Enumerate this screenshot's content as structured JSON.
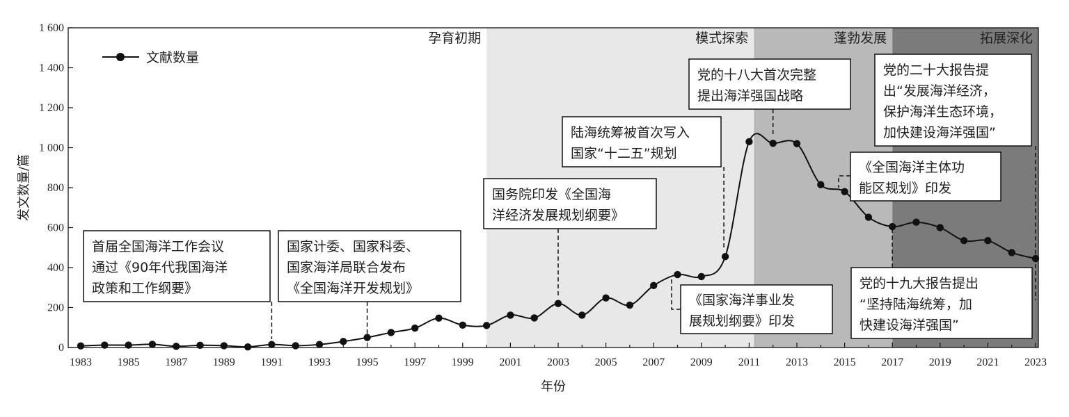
{
  "chart_data": {
    "type": "line",
    "xlabel": "年份",
    "ylabel": "发文数量/篇",
    "xlim": [
      1983,
      2023
    ],
    "ylim": [
      0,
      1600
    ],
    "x_ticks": [
      "1983",
      "1985",
      "1987",
      "1989",
      "1991",
      "1993",
      "1995",
      "1997",
      "1999",
      "2001",
      "2003",
      "2005",
      "2007",
      "2009",
      "2011",
      "2013",
      "2015",
      "2017",
      "2019",
      "2021",
      "2023"
    ],
    "y_ticks": [
      "0",
      "200",
      "400",
      "600",
      "800",
      "1 000",
      "1 200",
      "1 400",
      "1 600"
    ],
    "legend": "top-left",
    "series": [
      {
        "name": "文献数量",
        "x": [
          1983,
          1984,
          1985,
          1986,
          1987,
          1988,
          1989,
          1990,
          1991,
          1992,
          1993,
          1994,
          1995,
          1996,
          1997,
          1998,
          1999,
          2000,
          2001,
          2002,
          2003,
          2004,
          2005,
          2006,
          2007,
          2008,
          2009,
          2010,
          2011,
          2012,
          2013,
          2014,
          2015,
          2016,
          2017,
          2018,
          2019,
          2020,
          2021,
          2022,
          2023
        ],
        "y": [
          8,
          12,
          12,
          16,
          6,
          11,
          9,
          3,
          15,
          9,
          15,
          30,
          50,
          75,
          97,
          147,
          112,
          110,
          162,
          148,
          220,
          162,
          248,
          212,
          310,
          365,
          355,
          455,
          1030,
          1022,
          1020,
          815,
          780,
          652,
          605,
          627,
          600,
          535,
          535,
          475,
          445
        ]
      }
    ],
    "phases": [
      {
        "label": "孕育初期",
        "from": 1983,
        "to": 2000,
        "color": "#ffffff"
      },
      {
        "label": "模式探索",
        "from": 2000,
        "to": 2011.2,
        "color": "#e8e8e8"
      },
      {
        "label": "蓬勃发展",
        "from": 2011.2,
        "to": 2017,
        "color": "#b9b9b9"
      },
      {
        "label": "拓展深化",
        "from": 2017,
        "to": 2023.5,
        "color": "#7b7b7b"
      }
    ],
    "annotations": [
      {
        "year": 1991,
        "lines": [
          "首届全国海洋工作会议",
          "通过《90年代我国海洋",
          "政策和工作纲要》"
        ]
      },
      {
        "year": 1995,
        "lines": [
          "国家计委、国家科委、",
          "国家海洋局联合发布",
          "《全国海洋开发规划》"
        ]
      },
      {
        "year": 2003,
        "lines": [
          "国务院印发《全国海",
          "洋经济发展规划纲要》"
        ]
      },
      {
        "year": 2008,
        "lines": [
          "《国家海洋事业发",
          "展规划纲要》印发"
        ]
      },
      {
        "year": 2011,
        "lines": [
          "陆海统筹被首次写入",
          "国家“十二五”规划"
        ]
      },
      {
        "year": 2012,
        "lines": [
          "党的十八大首次完整",
          "提出海洋强国战略"
        ]
      },
      {
        "year": 2015,
        "lines": [
          "《全国海洋主体功",
          "能区规划》印发"
        ]
      },
      {
        "year": 2017,
        "lines": [
          "党的十九大报告提出",
          "“坚持陆海统筹，加",
          "快建设海洋强国”"
        ]
      },
      {
        "year": 2023,
        "lines": [
          "党的二十大报告提",
          "出“发展海洋经济，",
          "保护海洋生态环境，",
          "加快建设海洋强国”"
        ]
      }
    ]
  }
}
